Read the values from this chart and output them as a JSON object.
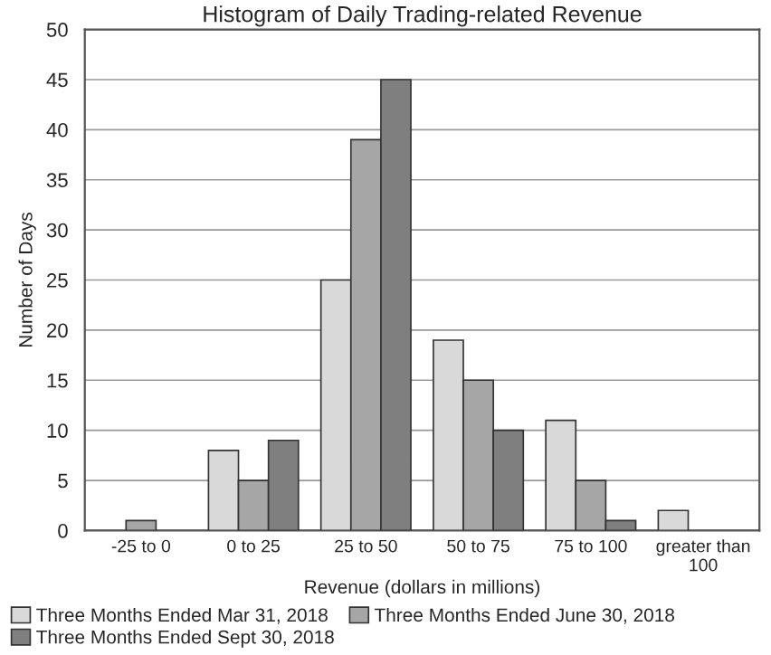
{
  "chart_data": {
    "type": "bar",
    "title": "Histogram of Daily Trading-related Revenue",
    "xlabel": "Revenue (dollars in millions)",
    "ylabel": "Number of Days",
    "categories": [
      "-25 to 0",
      "0 to 25",
      "25 to 50",
      "50 to 75",
      "75 to 100",
      "greater than\n100"
    ],
    "series": [
      {
        "name": "Three Months Ended Mar 31, 2018",
        "color": "#d9d9d9",
        "values": [
          0,
          8,
          25,
          19,
          11,
          2
        ]
      },
      {
        "name": "Three Months Ended June 30, 2018",
        "color": "#a6a6a6",
        "values": [
          1,
          5,
          39,
          15,
          5,
          0
        ]
      },
      {
        "name": "Three Months Ended Sept 30, 2018",
        "color": "#7f7f7f",
        "values": [
          0,
          9,
          45,
          10,
          1,
          0
        ]
      }
    ],
    "ylim": [
      0,
      50
    ],
    "yticks": [
      0,
      5,
      10,
      15,
      20,
      25,
      30,
      35,
      40,
      45,
      50
    ],
    "grid": "y",
    "legend": "bottom"
  }
}
